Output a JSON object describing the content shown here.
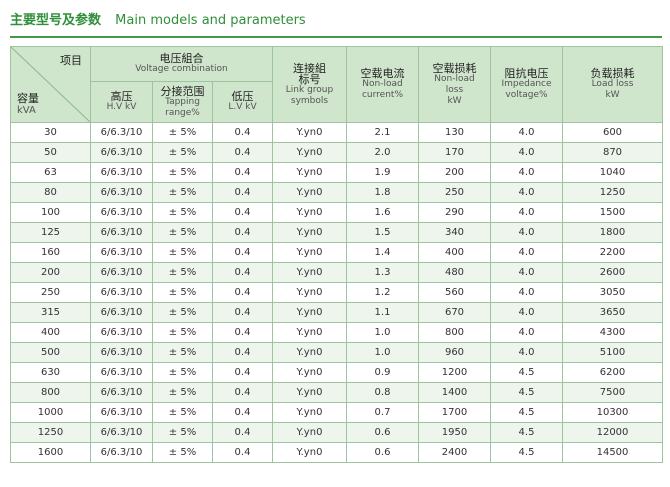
{
  "title": {
    "cn": "主要型号及参数",
    "en": "Main models and parameters"
  },
  "header": {
    "item": "项目",
    "capacity_cn": "容量",
    "capacity_en": "kVA",
    "voltage_cn": "电压組合",
    "voltage_en": "Voltage combination",
    "hv_cn": "高压",
    "hv_en": "H.V kV",
    "tap_cn": "分接范围",
    "tap_en1": "Tapping",
    "tap_en2": "range%",
    "lv_cn": "低压",
    "lv_en": "L.V kV",
    "link_cn": "连接組",
    "link_cn2": "标号",
    "link_en1": "Link group",
    "link_en2": "symbols",
    "nlc_cn": "空载电流",
    "nlc_en1": "Non-load",
    "nlc_en2": "current%",
    "nll_cn": "空载损耗",
    "nll_en1": "Non-load",
    "nll_en2": "loss",
    "nll_en3": "kW",
    "imp_cn": "阻抗电压",
    "imp_en1": "Impedance",
    "imp_en2": "voltage%",
    "ll_cn": "负载损耗",
    "ll_en1": "Load loss",
    "ll_en2": "kW"
  },
  "rows": [
    [
      "30",
      "6/6.3/10",
      "0.4",
      "± 5%",
      "Y.yn0",
      "2.1",
      "130",
      "4.0",
      "600"
    ],
    [
      "50",
      "6/6.3/10",
      "0.4",
      "± 5%",
      "Y.yn0",
      "2.0",
      "170",
      "4.0",
      "870"
    ],
    [
      "63",
      "6/6.3/10",
      "0.4",
      "± 5%",
      "Y.yn0",
      "1.9",
      "200",
      "4.0",
      "1040"
    ],
    [
      "80",
      "6/6.3/10",
      "0.4",
      "± 5%",
      "Y.yn0",
      "1.8",
      "250",
      "4.0",
      "1250"
    ],
    [
      "100",
      "6/6.3/10",
      "0.4",
      "± 5%",
      "Y.yn0",
      "1.6",
      "290",
      "4.0",
      "1500"
    ],
    [
      "125",
      "6/6.3/10",
      "0.4",
      "± 5%",
      "Y.yn0",
      "1.5",
      "340",
      "4.0",
      "1800"
    ],
    [
      "160",
      "6/6.3/10",
      "0.4",
      "± 5%",
      "Y.yn0",
      "1.4",
      "400",
      "4.0",
      "2200"
    ],
    [
      "200",
      "6/6.3/10",
      "0.4",
      "± 5%",
      "Y.yn0",
      "1.3",
      "480",
      "4.0",
      "2600"
    ],
    [
      "250",
      "6/6.3/10",
      "0.4",
      "± 5%",
      "Y.yn0",
      "1.2",
      "560",
      "4.0",
      "3050"
    ],
    [
      "315",
      "6/6.3/10",
      "0.4",
      "± 5%",
      "Y.yn0",
      "1.1",
      "670",
      "4.0",
      "3650"
    ],
    [
      "400",
      "6/6.3/10",
      "0.4",
      "± 5%",
      "Y.yn0",
      "1.0",
      "800",
      "4.0",
      "4300"
    ],
    [
      "500",
      "6/6.3/10",
      "0.4",
      "± 5%",
      "Y.yn0",
      "1.0",
      "960",
      "4.0",
      "5100"
    ],
    [
      "630",
      "6/6.3/10",
      "0.4",
      "± 5%",
      "Y.yn0",
      "0.9",
      "1200",
      "4.5",
      "6200"
    ],
    [
      "800",
      "6/6.3/10",
      "0.4",
      "± 5%",
      "Y.yn0",
      "0.8",
      "1400",
      "4.5",
      "7500"
    ],
    [
      "1000",
      "6/6.3/10",
      "0.4",
      "± 5%",
      "Y.yn0",
      "0.7",
      "1700",
      "4.5",
      "10300"
    ],
    [
      "1250",
      "6/6.3/10",
      "0.4",
      "± 5%",
      "Y.yn0",
      "0.6",
      "1950",
      "4.5",
      "12000"
    ],
    [
      "1600",
      "6/6.3/10",
      "0.4",
      "± 5%",
      "Y.yn0",
      "0.6",
      "2400",
      "4.5",
      "14500"
    ]
  ]
}
